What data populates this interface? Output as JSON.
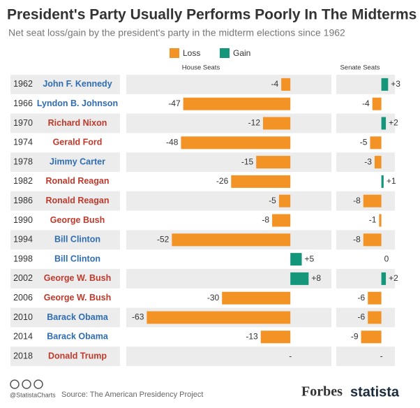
{
  "title": "President's Party Usually Performs Poorly In The Midterms",
  "subtitle": "Net seat loss/gain by the president's party in the midterm elections since 1962",
  "footer": {
    "handle": "@StatistaCharts",
    "source": "Source: The American Presidency Project",
    "brand1": "Forbes",
    "brand2": "statista"
  },
  "chart_data": {
    "type": "bar",
    "orientation": "horizontal",
    "legend": [
      {
        "name": "Loss",
        "color": "#f39325"
      },
      {
        "name": "Gain",
        "color": "#14967a"
      }
    ],
    "categories": [
      "1962",
      "1966",
      "1970",
      "1974",
      "1978",
      "1982",
      "1986",
      "1990",
      "1994",
      "1998",
      "2002",
      "2006",
      "2010",
      "2014",
      "2018"
    ],
    "presidents": [
      "John F. Kennedy",
      "Lyndon B. Johnson",
      "Richard Nixon",
      "Gerald Ford",
      "Jimmy Carter",
      "Ronald Reagan",
      "Ronald Reagan",
      "George Bush",
      "Bill Clinton",
      "Bill Clinton",
      "George W. Bush",
      "George W. Bush",
      "Barack Obama",
      "Barack Obama",
      "Donald Trump"
    ],
    "president_colors": [
      "#2f6db3",
      "#2f6db3",
      "#c0392b",
      "#c0392b",
      "#2f6db3",
      "#c0392b",
      "#c0392b",
      "#c0392b",
      "#2f6db3",
      "#2f6db3",
      "#c0392b",
      "#c0392b",
      "#2f6db3",
      "#2f6db3",
      "#c0392b"
    ],
    "series": [
      {
        "name": "House Seats",
        "xlim": [
          -72,
          18
        ],
        "values": [
          -4,
          -47,
          -12,
          -48,
          -15,
          -26,
          -5,
          -8,
          -52,
          5,
          8,
          -30,
          -63,
          -13,
          null
        ],
        "value_labels": [
          "-4",
          "-47",
          "-12",
          "-48",
          "-15",
          "-26",
          "-5",
          "-8",
          "-52",
          "+5",
          "+8",
          "-30",
          "-63",
          "-13",
          "-"
        ]
      },
      {
        "name": "Senate Seats",
        "xlim": [
          -20,
          6
        ],
        "values": [
          3,
          -4,
          2,
          -5,
          -3,
          1,
          -8,
          -1,
          -8,
          0,
          2,
          -6,
          -6,
          -9,
          null
        ],
        "value_labels": [
          "+3",
          "-4",
          "+2",
          "-5",
          "-3",
          "+1",
          "-8",
          "-1",
          "-8",
          "0",
          "+2",
          "-6",
          "-6",
          "-9",
          "-"
        ]
      }
    ]
  }
}
